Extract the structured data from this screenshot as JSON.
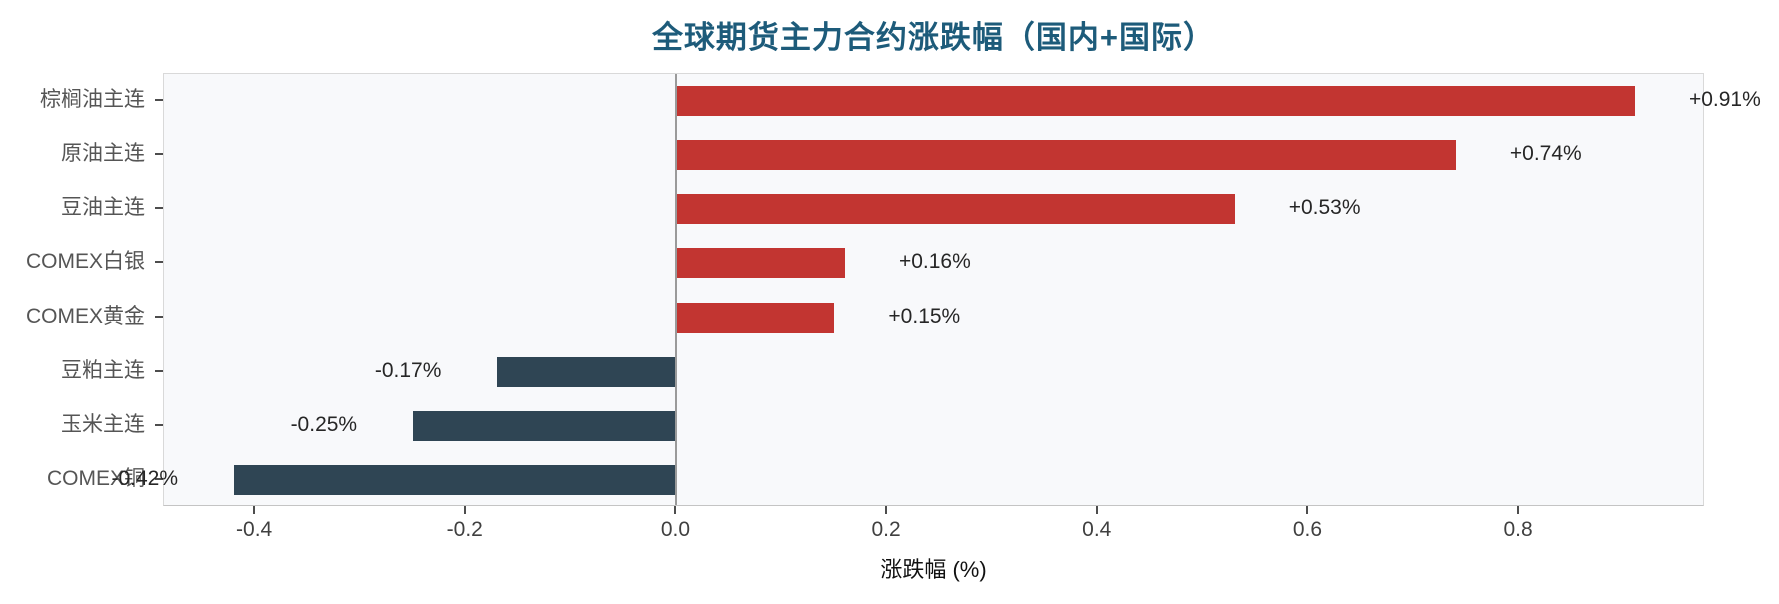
{
  "chart_data": {
    "type": "bar",
    "orientation": "horizontal",
    "title": "全球期货主力合约涨跌幅（国内+国际）",
    "xlabel": "涨跌幅 (%)",
    "categories": [
      "棕榈油主连",
      "原油主连",
      "豆油主连",
      "COMEX白银",
      "COMEX黄金",
      "豆粕主连",
      "玉米主连",
      "COMEX铜"
    ],
    "values": [
      0.91,
      0.74,
      0.53,
      0.16,
      0.15,
      -0.17,
      -0.25,
      -0.42
    ],
    "value_labels": [
      "+0.91%",
      "+0.74%",
      "+0.53%",
      "+0.16%",
      "+0.15%",
      "-0.17%",
      "-0.25%",
      "-0.42%"
    ],
    "x_ticks": [
      -0.4,
      -0.2,
      0.0,
      0.2,
      0.4,
      0.6,
      0.8
    ],
    "x_tick_labels": [
      "-0.4",
      "-0.2",
      "0.0",
      "0.2",
      "0.4",
      "0.6",
      "0.8"
    ],
    "xlim": [
      -0.4865,
      0.9765
    ],
    "grid": false,
    "legend": "none",
    "colors": {
      "positive_bar": "#c23531",
      "negative_bar": "#2f4554",
      "title_text": "#1d5b7a",
      "plot_background": "#f8f9fb",
      "zero_line": "#9a9a9a"
    }
  }
}
